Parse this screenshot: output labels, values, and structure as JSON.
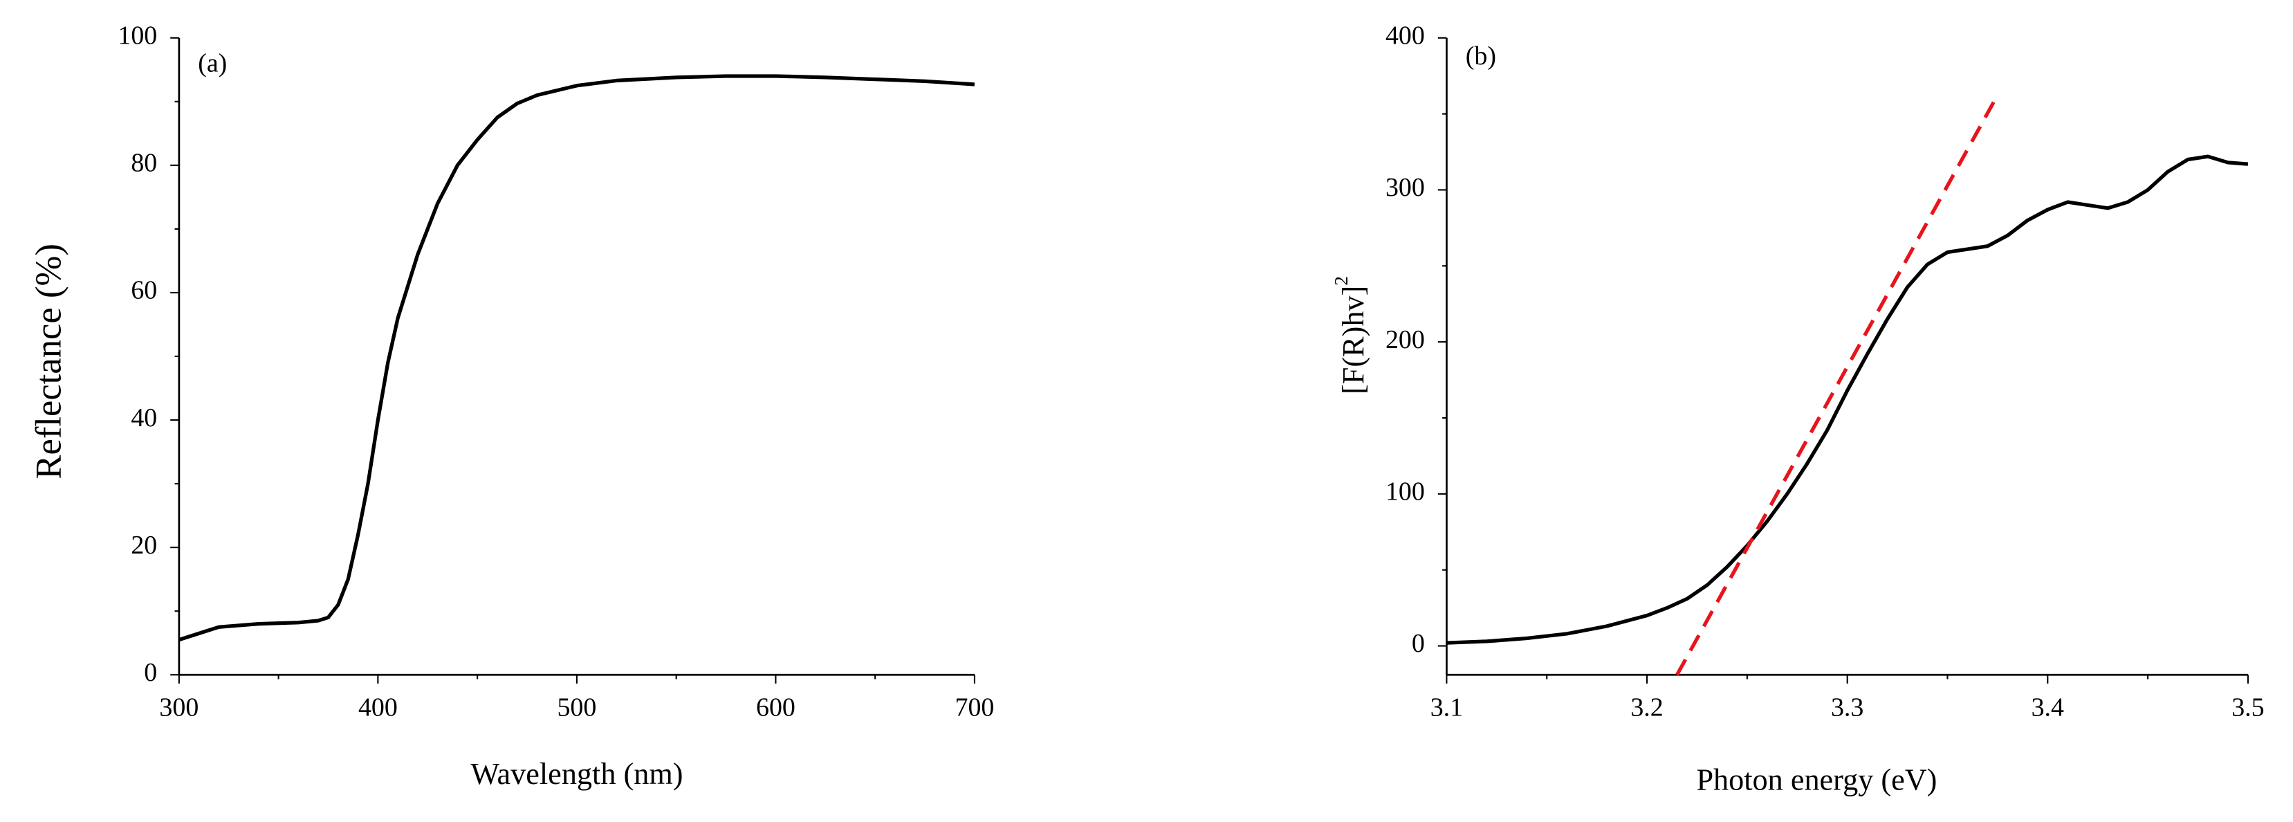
{
  "chart_data": [
    {
      "type": "line",
      "title": "(a)",
      "xlabel": "Wavelength (nm)",
      "ylabel": "Reflectance (%)",
      "xlim": [
        300,
        700
      ],
      "xticks": [
        300,
        400,
        500,
        600,
        700
      ],
      "ylim": [
        0,
        100
      ],
      "yticks": [
        0,
        20,
        40,
        60,
        80,
        100
      ],
      "minor_ticks": true,
      "series": [
        {
          "color": "#000000",
          "dash": false,
          "x": [
            300,
            310,
            320,
            340,
            360,
            370,
            375,
            380,
            385,
            390,
            395,
            400,
            405,
            410,
            420,
            430,
            440,
            450,
            460,
            470,
            480,
            500,
            520,
            550,
            575,
            600,
            625,
            650,
            675,
            700
          ],
          "values": [
            5.5,
            6.5,
            7.5,
            8,
            8.2,
            8.5,
            9,
            11,
            15,
            22,
            30,
            40,
            49,
            56,
            66,
            74,
            80,
            84,
            87.5,
            89.7,
            91,
            92.5,
            93.3,
            93.8,
            94,
            94,
            93.8,
            93.5,
            93.2,
            92.7
          ]
        }
      ]
    },
    {
      "type": "line",
      "title": "(b)",
      "xlabel": "Photon energy (eV)",
      "ylabel": "[F(R)hv]",
      "ylabel_sup": "2",
      "xlim": [
        3.1,
        3.5
      ],
      "xticks": [
        3.1,
        3.2,
        3.3,
        3.4,
        3.5
      ],
      "ylim": [
        -19,
        400
      ],
      "yticks": [
        0,
        100,
        200,
        300,
        400
      ],
      "minor_ticks": true,
      "series": [
        {
          "color": "#000000",
          "dash": false,
          "x": [
            3.1,
            3.12,
            3.14,
            3.16,
            3.18,
            3.2,
            3.21,
            3.22,
            3.23,
            3.24,
            3.25,
            3.26,
            3.27,
            3.28,
            3.29,
            3.3,
            3.31,
            3.32,
            3.33,
            3.34,
            3.35,
            3.37,
            3.38,
            3.39,
            3.4,
            3.41,
            3.42,
            3.43,
            3.44,
            3.45,
            3.46,
            3.47,
            3.48,
            3.49,
            3.5
          ],
          "values": [
            2,
            3,
            5,
            8,
            13,
            20,
            25,
            31,
            40,
            52,
            66,
            82,
            100,
            120,
            142,
            168,
            192,
            215,
            236,
            251,
            259,
            263,
            270,
            280,
            287,
            292,
            290,
            288,
            292,
            300,
            312,
            320,
            322,
            318,
            317
          ]
        },
        {
          "color": "#e8141b",
          "dash": true,
          "x": [
            3.215,
            3.374
          ],
          "values": [
            -19,
            360
          ]
        }
      ]
    }
  ]
}
